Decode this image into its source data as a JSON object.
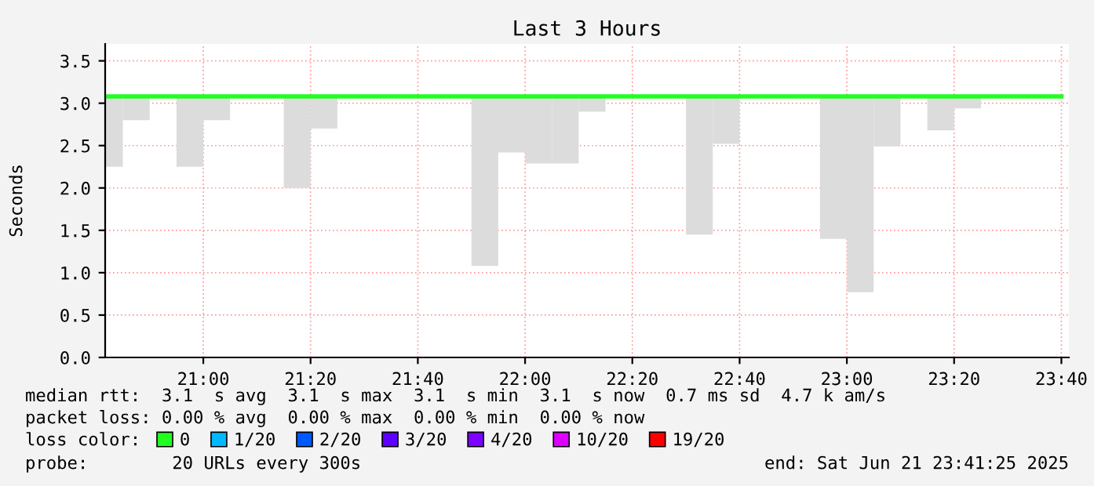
{
  "chart_data": [
    {
      "type": "bar",
      "title": "Last 3 Hours",
      "ylabel": "Seconds",
      "x": [
        20.7083,
        20.7917,
        20.9583,
        21.0417,
        21.2917,
        21.375,
        21.875,
        21.9583,
        22.0417,
        22.125,
        22.2083,
        22.5417,
        22.625,
        22.9583,
        23.0417,
        23.125,
        23.2917,
        23.375
      ],
      "series": [
        {
          "color": "#dcdcdc",
          "base": [
            2.25,
            2.8,
            2.25,
            2.8,
            2.0,
            2.7,
            1.08,
            2.42,
            2.29,
            2.29,
            2.9,
            1.45,
            2.52,
            1.4,
            0.77,
            2.49,
            2.68,
            2.94
          ],
          "values": [
            0.83,
            0.28,
            0.83,
            0.28,
            1.08,
            0.38,
            2.0,
            0.66,
            0.79,
            0.79,
            0.18,
            1.63,
            0.56,
            1.68,
            2.31,
            0.59,
            0.4,
            0.14
          ]
        },
        {
          "type": "line",
          "color": "#20ff20",
          "x": [
            20.7,
            23.667
          ],
          "values": [
            3.08,
            3.08
          ]
        }
      ],
      "xlim": [
        20.695,
        23.69
      ],
      "xticks": [
        {
          "value": 21,
          "label": "21:00"
        },
        {
          "value": 21.3333,
          "label": "21:20"
        },
        {
          "value": 21.6667,
          "label": "21:40"
        },
        {
          "value": 22,
          "label": "22:00"
        },
        {
          "value": 22.3333,
          "label": "22:20"
        },
        {
          "value": 22.6667,
          "label": "22:40"
        },
        {
          "value": 23,
          "label": "23:00"
        },
        {
          "value": 23.3333,
          "label": "23:20"
        },
        {
          "value": 23.6667,
          "label": "23:40"
        }
      ],
      "ylim": [
        0,
        3.7
      ],
      "yticks": [
        {
          "value": 0,
          "label": "0.0"
        },
        {
          "value": 0.5,
          "label": "0.5"
        },
        {
          "value": 1,
          "label": "1.0"
        },
        {
          "value": 1.5,
          "label": "1.5"
        },
        {
          "value": 2,
          "label": "2.0"
        },
        {
          "value": 2.5,
          "label": "2.5"
        },
        {
          "value": 3,
          "label": "3.0"
        },
        {
          "value": 3.5,
          "label": "3.5"
        }
      ],
      "grid": true,
      "annotations": [
        "median rtt:  3.1  s avg  3.1  s max  3.1  s min  3.1  s now  0.7 ms sd  4.7 k am/s",
        "packet loss: 0.00 % avg  0.00 % max  0.00 % min  0.00 % now",
        "probe:        20 URLs every 300s",
        "end: Sat Jun 21 23:41:25 2025"
      ]
    },
    {
      "type": "other",
      "title": "loss color:",
      "categories": [
        "0",
        "1/20",
        "2/20",
        "3/20",
        "4/20",
        "10/20",
        "19/20"
      ],
      "colors": [
        "#20ff20",
        "#00b8ff",
        "#0059ff",
        "#5e00ff",
        "#7e00ff",
        "#dd00ff",
        "#ff0000"
      ]
    }
  ]
}
